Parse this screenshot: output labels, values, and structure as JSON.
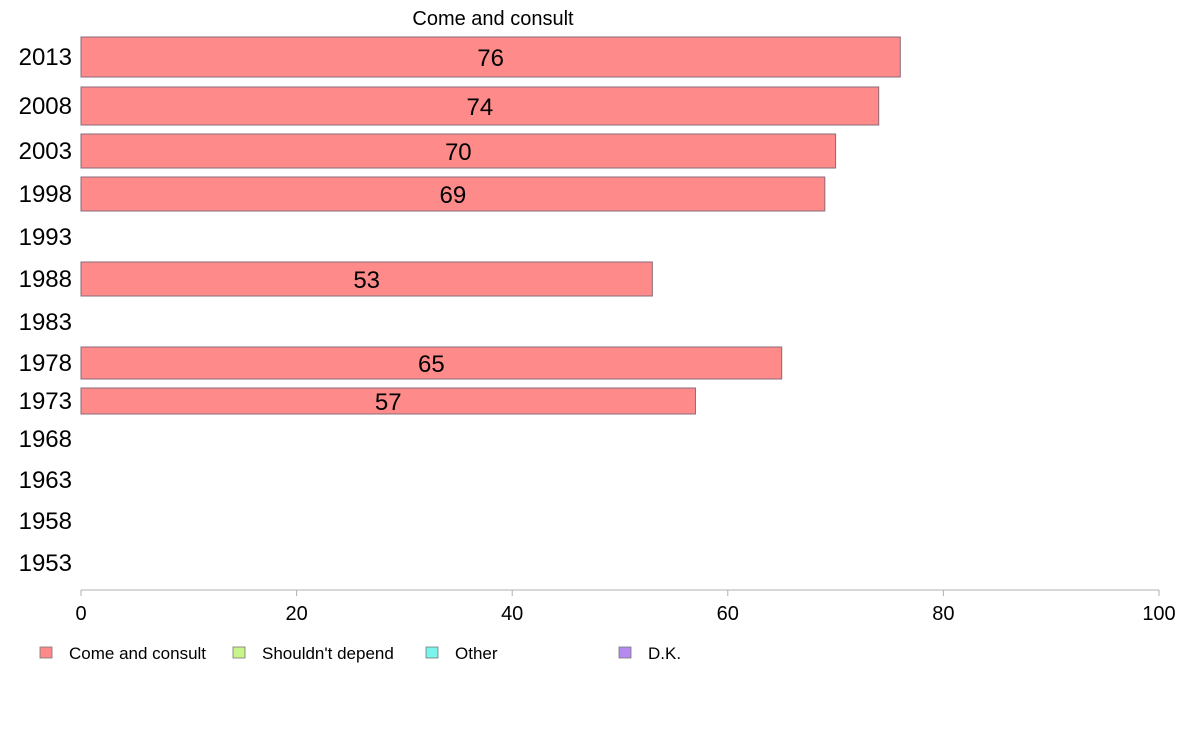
{
  "chart_data": {
    "type": "bar",
    "orientation": "horizontal",
    "title": "Come and consult",
    "categories": [
      "2013",
      "2008",
      "2003",
      "1998",
      "1993",
      "1988",
      "1983",
      "1978",
      "1973",
      "1968",
      "1963",
      "1958",
      "1953"
    ],
    "series": [
      {
        "name": "Come and consult",
        "color": "#ff8a8a",
        "values": [
          76,
          74,
          70,
          69,
          null,
          53,
          null,
          65,
          57,
          null,
          null,
          null,
          null
        ],
        "data_labels": [
          "76",
          "74",
          "70",
          "69",
          "",
          "53",
          "",
          "65",
          "57",
          "",
          "",
          "",
          ""
        ]
      }
    ],
    "xlim": [
      0,
      100
    ],
    "xticks": [
      "0",
      "20",
      "40",
      "60",
      "80",
      "100"
    ],
    "grid": false,
    "legend": {
      "placement": "bottom-left",
      "items": [
        {
          "label": "Come and consult",
          "color": "#ff8a8a"
        },
        {
          "label": "Shouldn't depend",
          "color": "#c8f58a"
        },
        {
          "label": "Other",
          "color": "#7af5ee"
        },
        {
          "label": "D.K.",
          "color": "#b48af0"
        }
      ]
    }
  }
}
